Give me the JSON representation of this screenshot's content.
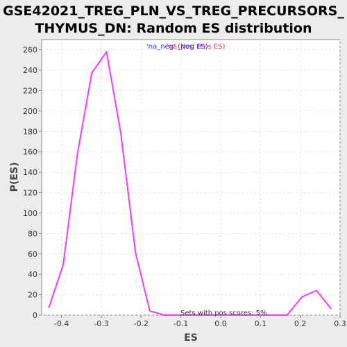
{
  "title_line1": "GSE42021_TREG_PLN_VS_TREG_PRECURSORS_",
  "title_line2": "THYMUS_DN: Random ES distribution",
  "colors": {
    "series": "#ff33ff",
    "neg_label": "#3333ff",
    "pos_label": "#ff3333",
    "plot_bg": "#ffffff",
    "grid": "#e6e6e6"
  },
  "chart_data": {
    "type": "line",
    "xlabel": "ES",
    "ylabel": "P(ES)",
    "xlim": [
      -0.45,
      0.3
    ],
    "ylim": [
      0,
      270
    ],
    "xticks": [
      -0.4,
      -0.3,
      -0.2,
      -0.1,
      0.0,
      0.1,
      0.2,
      0.3
    ],
    "xtick_labels": [
      "-0.4",
      "-0.3",
      "-0.2",
      "-0.1",
      "0.0",
      "0.1",
      "0.2",
      "0.3"
    ],
    "yticks": [
      0,
      20,
      40,
      60,
      80,
      100,
      120,
      140,
      160,
      180,
      200,
      220,
      240,
      260
    ],
    "ytick_labels": [
      "0",
      "20",
      "40",
      "60",
      "80",
      "100",
      "120",
      "140",
      "160",
      "180",
      "200",
      "220",
      "240",
      "260"
    ],
    "grid": true,
    "series": [
      {
        "x": [
          -0.432,
          -0.396,
          -0.36,
          -0.324,
          -0.287,
          -0.251,
          -0.214,
          -0.178,
          -0.142,
          -0.105,
          -0.069,
          -0.033,
          0.004,
          0.04,
          0.077,
          0.113,
          0.15,
          0.167,
          0.205,
          0.241,
          0.278
        ],
        "y": [
          7,
          49,
          158,
          237,
          258,
          178,
          61,
          4,
          0,
          0,
          0,
          0,
          0,
          0,
          0,
          0,
          0,
          0,
          18,
          24,
          6
        ]
      }
    ],
    "legend": {
      "neg_text": "'na_neg' (Neg ES)",
      "pos_text": "'na_pos' (Pos ES)",
      "placement": "top-center"
    },
    "annotation": "Sets with pos scores: 5%"
  }
}
